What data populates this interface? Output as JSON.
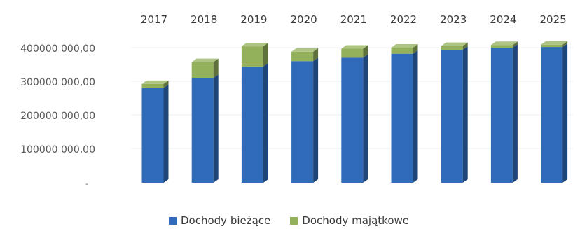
{
  "chart_data": {
    "type": "bar",
    "stacked": true,
    "style": "3d-column",
    "categories": [
      "2017",
      "2018",
      "2019",
      "2020",
      "2021",
      "2022",
      "2023",
      "2024",
      "2025"
    ],
    "series": [
      {
        "name": "Dochody bieżące",
        "color": "#2f6bb8",
        "values": [
          282000000,
          312000000,
          346000000,
          362000000,
          372000000,
          384000000,
          396000000,
          402000000,
          404000000
        ]
      },
      {
        "name": "Dochody majątkowe",
        "color": "#93b05a",
        "values": [
          12000000,
          47000000,
          60000000,
          28000000,
          27000000,
          18000000,
          11000000,
          8000000,
          7000000
        ]
      }
    ],
    "y_ticks": [
      {
        "value": 0,
        "label": "-"
      },
      {
        "value": 100000000,
        "label": "100000 000,00"
      },
      {
        "value": 200000000,
        "label": "200000 000,00"
      },
      {
        "value": 300000000,
        "label": "300000 000,00"
      },
      {
        "value": 400000000,
        "label": "400000 000,00"
      }
    ],
    "ylim": [
      0,
      400000000
    ],
    "x_labels_position": "top",
    "legend_position": "bottom",
    "grid": true
  }
}
